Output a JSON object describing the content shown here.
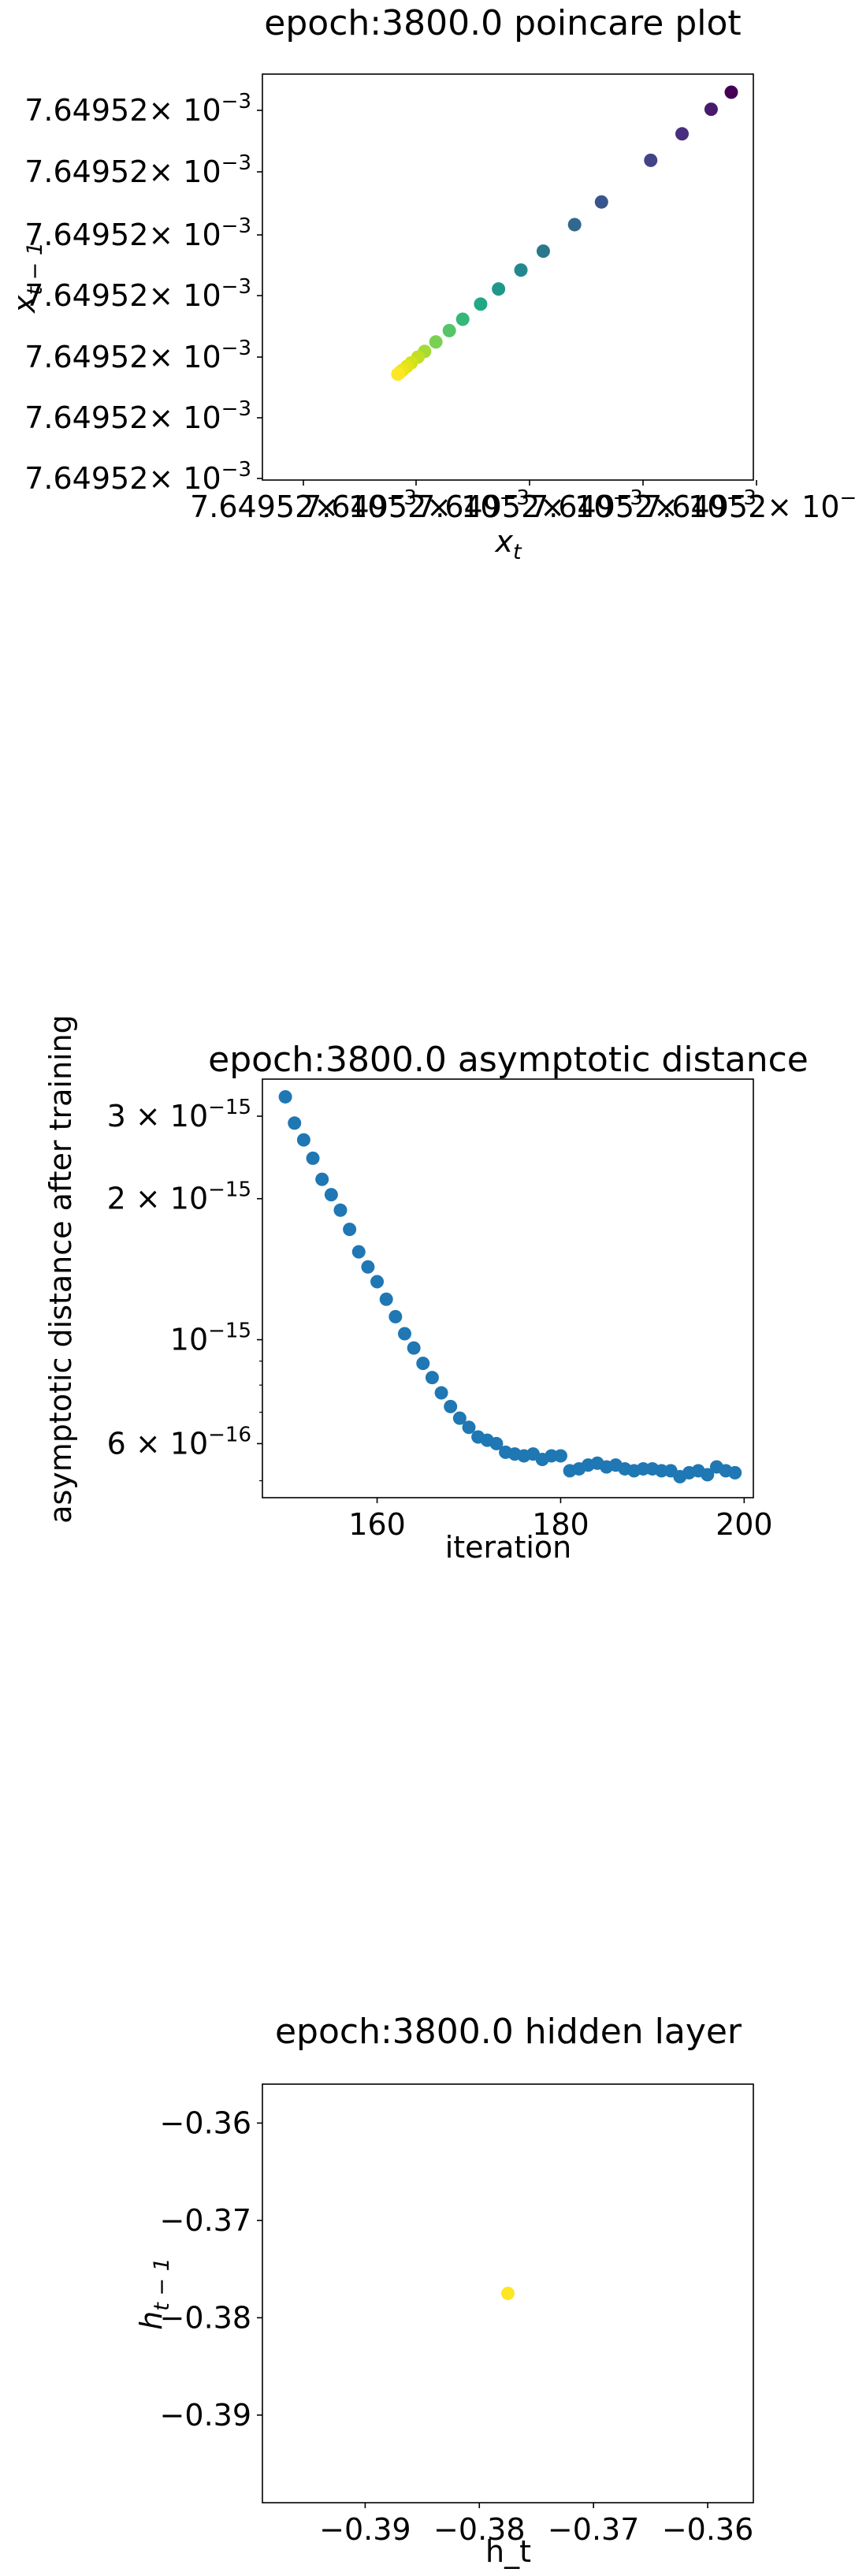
{
  "chart_data": [
    {
      "type": "scatter",
      "title": "epoch:3800.0 poincare plot",
      "xlabel_base": "x",
      "xlabel_sub": "t",
      "ylabel_base": "x",
      "ylabel_sub": "t − 1",
      "ytick_labels": [
        "7.64952",
        "7.64952",
        "7.64952",
        "7.64952",
        "7.64952",
        "7.64952",
        "7.64952"
      ],
      "ytick_exp_prefix": "× 10",
      "ytick_exp": "−3",
      "xtick_labels": [
        "7.64952",
        "7.64952",
        "7.64952",
        "7.64952",
        "7.64952"
      ],
      "xtick_exp_prefix": "× 10",
      "xtick_exp": "−3",
      "colormap": "viridis",
      "x": [
        1.0,
        0.955,
        0.89,
        0.82,
        0.71,
        0.65,
        0.58,
        0.53,
        0.48,
        0.44,
        0.4,
        0.37,
        0.34,
        0.315,
        0.3,
        0.285,
        0.275,
        0.265,
        0.26,
        0.255
      ],
      "y": [
        1.0,
        0.955,
        0.89,
        0.82,
        0.71,
        0.65,
        0.58,
        0.53,
        0.48,
        0.44,
        0.4,
        0.37,
        0.34,
        0.315,
        0.3,
        0.285,
        0.275,
        0.265,
        0.26,
        0.255
      ],
      "colors": [
        "#440154",
        "#481a6c",
        "#472f7d",
        "#414487",
        "#39568c",
        "#31688e",
        "#2a788e",
        "#23888e",
        "#1f988b",
        "#22a884",
        "#35b779",
        "#54c568",
        "#7ad151",
        "#a5db36",
        "#c2df23",
        "#d2e21b",
        "#e2e418",
        "#eae51a",
        "#f1e51d",
        "#fde725"
      ]
    },
    {
      "type": "scatter",
      "title": "epoch:3800.0 asymptotic distance",
      "xlabel": "iteration",
      "ylabel": "asymptotic distance after training",
      "yscale": "log",
      "xlim": [
        147.5,
        201
      ],
      "ylim": [
        4.6e-16,
        3.6e-15
      ],
      "xticks": [
        160,
        180,
        200
      ],
      "yticks": [
        {
          "value": 3e-15,
          "mantissa": "3 × 10",
          "exp": "−15"
        },
        {
          "value": 2e-15,
          "mantissa": "2 × 10",
          "exp": "−15"
        },
        {
          "value": 1e-15,
          "mantissa": "10",
          "exp": "−15"
        },
        {
          "value": 6e-16,
          "mantissa": "6 × 10",
          "exp": "−16"
        }
      ],
      "color": "#1f77b4",
      "x": [
        150,
        151,
        152,
        153,
        154,
        155,
        156,
        157,
        158,
        159,
        160,
        161,
        162,
        163,
        164,
        165,
        166,
        167,
        168,
        169,
        170,
        171,
        172,
        173,
        174,
        175,
        176,
        177,
        178,
        179,
        180,
        181,
        182,
        183,
        184,
        185,
        186,
        187,
        188,
        189,
        190,
        191,
        192,
        193,
        194,
        195,
        196,
        197,
        198,
        199
      ],
      "y": [
        3.3e-15,
        2.9e-15,
        2.67e-15,
        2.44e-15,
        2.2e-15,
        2.04e-15,
        1.89e-15,
        1.72e-15,
        1.54e-15,
        1.43e-15,
        1.33e-15,
        1.22e-15,
        1.12e-15,
        1.03e-15,
        9.6e-16,
        8.9e-16,
        8.3e-16,
        7.7e-16,
        7.2e-16,
        6.8e-16,
        6.5e-16,
        6.2e-16,
        6.1e-16,
        6e-16,
        5.75e-16,
        5.7e-16,
        5.65e-16,
        5.7e-16,
        5.55e-16,
        5.65e-16,
        5.65e-16,
        5.25e-16,
        5.3e-16,
        5.4e-16,
        5.45e-16,
        5.35e-16,
        5.4e-16,
        5.3e-16,
        5.25e-16,
        5.3e-16,
        5.3e-16,
        5.25e-16,
        5.25e-16,
        5.1e-16,
        5.2e-16,
        5.25e-16,
        5.15e-16,
        5.35e-16,
        5.25e-16,
        5.2e-16
      ]
    },
    {
      "type": "scatter",
      "title": "epoch:3800.0 hidden layer",
      "xlabel": "h_t",
      "ylabel_base": "h",
      "ylabel_sub": "t − 1",
      "xlim": [
        -0.399,
        -0.356
      ],
      "ylim": [
        -0.399,
        -0.356
      ],
      "xticks": [
        {
          "value": -0.39,
          "label": "−0.39"
        },
        {
          "value": -0.38,
          "label": "−0.38"
        },
        {
          "value": -0.37,
          "label": "−0.37"
        },
        {
          "value": -0.36,
          "label": "−0.36"
        }
      ],
      "yticks": [
        {
          "value": -0.36,
          "label": "−0.36"
        },
        {
          "value": -0.37,
          "label": "−0.37"
        },
        {
          "value": -0.38,
          "label": "−0.38"
        },
        {
          "value": -0.39,
          "label": "−0.39"
        }
      ],
      "x": [
        -0.3775
      ],
      "y": [
        -0.3775
      ],
      "colors": [
        "#fde725"
      ]
    }
  ]
}
